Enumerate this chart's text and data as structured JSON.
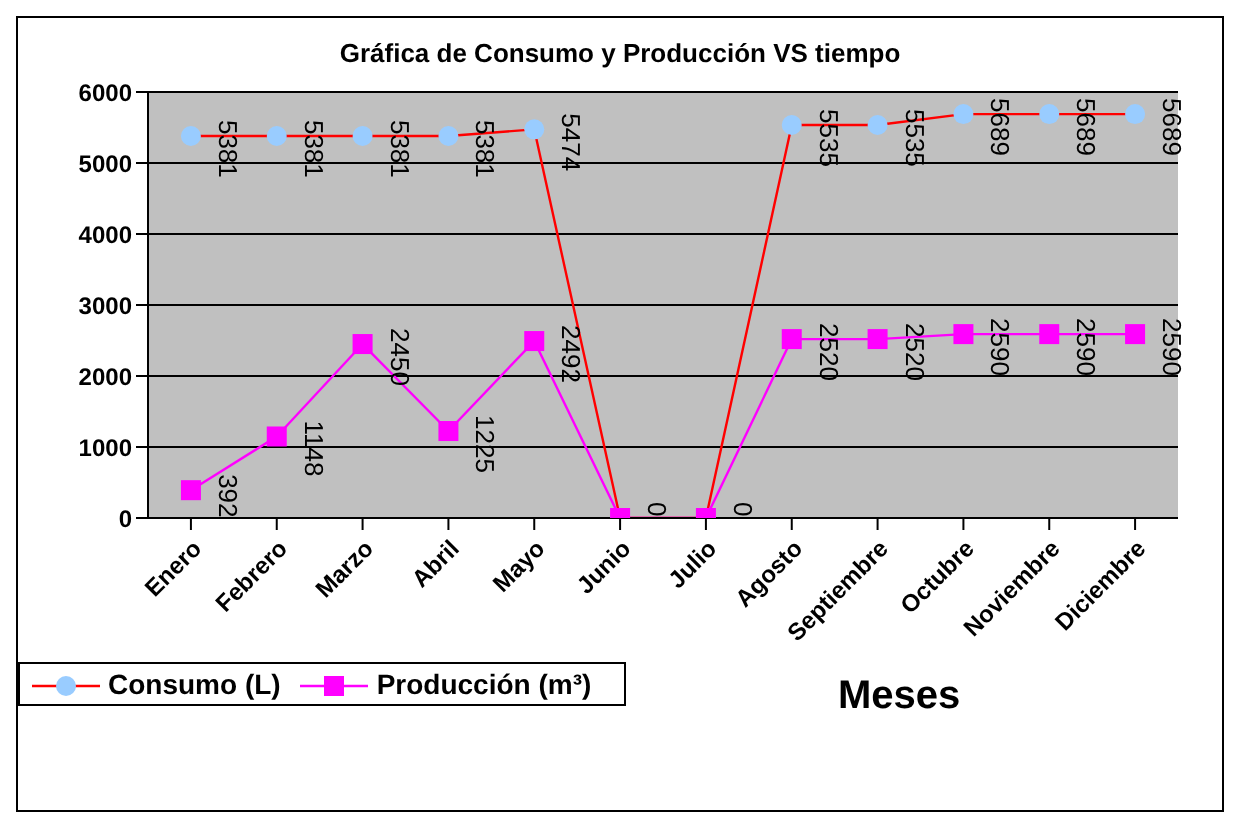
{
  "chart_data": {
    "type": "line",
    "title": "Gráfica de Consumo y Producción VS tiempo",
    "xlabel": "Meses",
    "categories": [
      "Enero",
      "Febrero",
      "Marzo",
      "Abril",
      "Mayo",
      "Junio",
      "Julio",
      "Agosto",
      "Septiembre",
      "Octubre",
      "Noviembre",
      "Diciembre"
    ],
    "series": [
      {
        "name": "Consumo (L)",
        "color": "#ff0000",
        "marker": "circle",
        "values": [
          5381,
          5381,
          5381,
          5381,
          5474,
          0,
          0,
          5535,
          5535,
          5689,
          5689,
          5689
        ],
        "value_labels": [
          "5381",
          "5381",
          "5381",
          "5381",
          "5474",
          null,
          null,
          "5535",
          "5535",
          "5689",
          "5689",
          "5689"
        ]
      },
      {
        "name": "Producción (m³)",
        "color": "#ff00ff",
        "marker": "square",
        "values": [
          392,
          1148,
          2450,
          1225,
          2492,
          0,
          0,
          2520,
          2520,
          2590,
          2590,
          2590
        ],
        "value_labels": [
          "392",
          "1148",
          "2450",
          "1225",
          "2492",
          "0",
          "0",
          "2520",
          "2520",
          "2590",
          "2590",
          "2590"
        ]
      }
    ],
    "ylim": [
      0,
      6000
    ],
    "yticks": [
      0,
      1000,
      2000,
      3000,
      4000,
      5000,
      6000
    ],
    "grid": "y",
    "legend": "bottom left"
  }
}
